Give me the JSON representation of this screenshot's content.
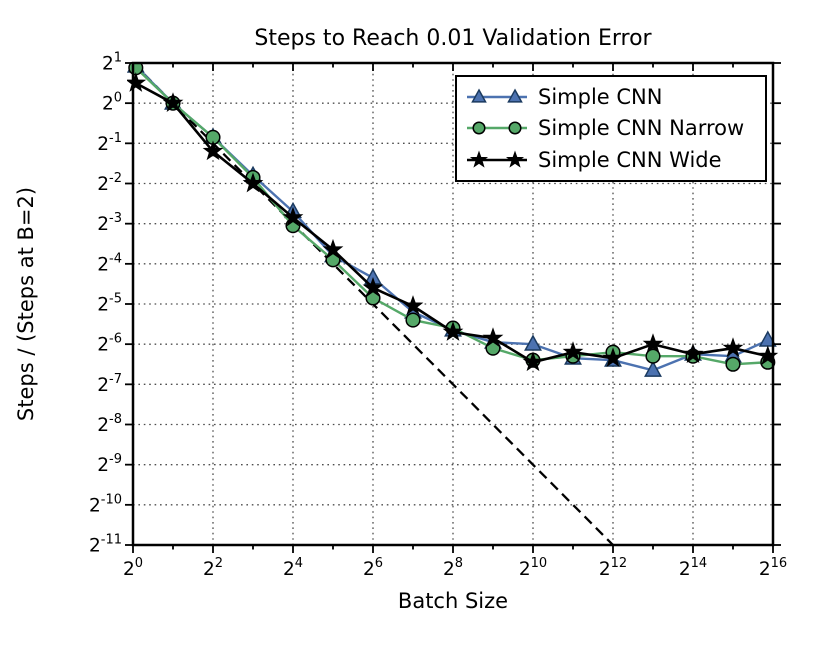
{
  "chart_data": {
    "type": "line",
    "title": "Steps to Reach 0.01 Validation Error",
    "xlabel": "Batch Size",
    "ylabel": "Steps / (Steps at B=2)",
    "x_scale": "log2",
    "y_scale": "log2",
    "xlim_log2": [
      0,
      16
    ],
    "ylim_log2": [
      -11,
      1
    ],
    "grid": true,
    "legend_position": "upper right",
    "tick_label_base": "2",
    "x_tick_exponents": [
      0,
      2,
      4,
      6,
      8,
      10,
      12,
      14,
      16
    ],
    "x_minor_tick_exponents": [
      1,
      3,
      5,
      7,
      9,
      11,
      13,
      15
    ],
    "y_tick_exponents": [
      1,
      0,
      -1,
      -2,
      -3,
      -4,
      -5,
      -6,
      -7,
      -8,
      -9,
      -10,
      -11
    ],
    "series": [
      {
        "name": "Simple CNN",
        "color": "#4C72B0",
        "marker": "triangle",
        "x_log2": [
          0.07,
          1,
          2,
          3,
          4,
          5,
          6,
          7,
          8,
          9,
          10,
          11,
          12,
          13,
          14,
          15,
          15.87
        ],
        "y_log2": [
          0.92,
          0,
          -0.85,
          -1.8,
          -2.7,
          -3.8,
          -4.35,
          -5.2,
          -5.65,
          -5.95,
          -6.0,
          -6.35,
          -6.4,
          -6.65,
          -6.25,
          -6.3,
          -5.9
        ]
      },
      {
        "name": "Simple CNN Narrow",
        "color": "#55A868",
        "marker": "circle",
        "x_log2": [
          0.07,
          1,
          2,
          3,
          4,
          5,
          6,
          7,
          8,
          9,
          10,
          11,
          12,
          13,
          14,
          15,
          15.87
        ],
        "y_log2": [
          0.88,
          0,
          -0.85,
          -1.85,
          -3.05,
          -3.9,
          -4.85,
          -5.4,
          -5.6,
          -6.1,
          -6.4,
          -6.3,
          -6.2,
          -6.3,
          -6.3,
          -6.5,
          -6.45
        ]
      },
      {
        "name": "Simple CNN Wide",
        "color": "#000000",
        "marker": "star",
        "x_log2": [
          0.07,
          1,
          2,
          3,
          4,
          5,
          6,
          7,
          8,
          9,
          10,
          11,
          12,
          13,
          14,
          15,
          15.87
        ],
        "y_log2": [
          0.5,
          0,
          -1.2,
          -2.0,
          -2.85,
          -3.65,
          -4.6,
          -5.05,
          -5.7,
          -5.85,
          -6.45,
          -6.2,
          -6.35,
          -6.0,
          -6.25,
          -6.1,
          -6.3
        ]
      }
    ],
    "reference_line": {
      "name": "perfect scaling (slope -1)",
      "style": "dashed",
      "color": "#000000",
      "x_log2": [
        0,
        12
      ],
      "y_log2": [
        1,
        -11
      ]
    }
  }
}
